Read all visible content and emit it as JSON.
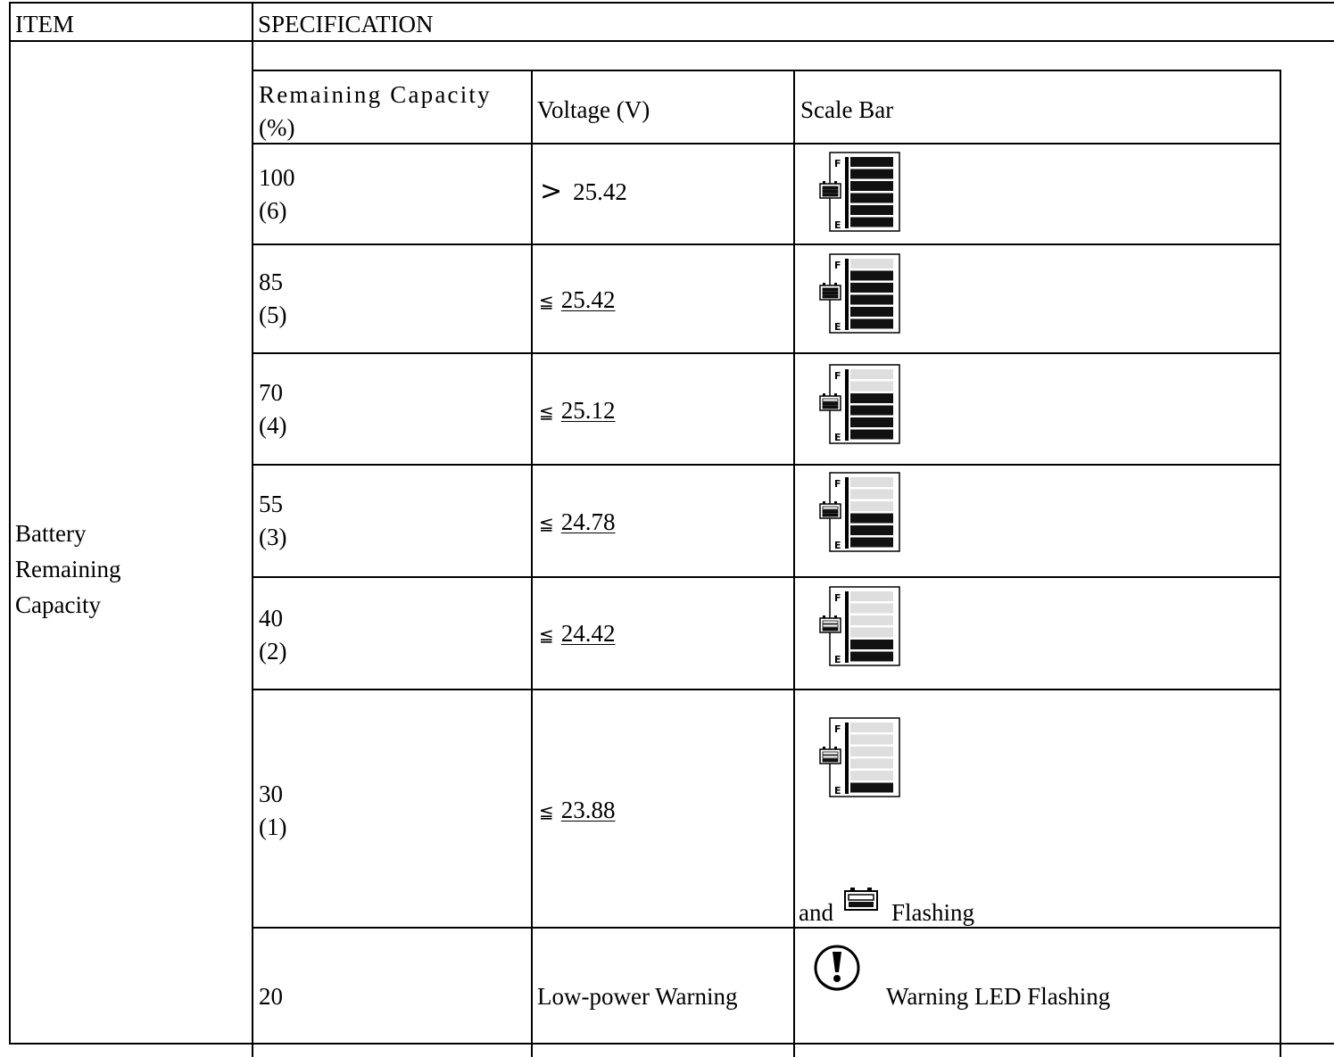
{
  "header": {
    "item": "ITEM",
    "specification": "SPECIFICATION"
  },
  "item_label": {
    "line1": "Battery",
    "line2": "Remaining",
    "line3": "Capacity"
  },
  "columns": {
    "capacity_line1": "Remaining Capacity",
    "capacity_line2": "(%)",
    "voltage": "Voltage (V)",
    "scale": "Scale Bar"
  },
  "rows": [
    {
      "capacity": "100",
      "level_text": "(6)",
      "symbol": ">",
      "voltage": "25.42",
      "filled_bars": 6
    },
    {
      "capacity": "85",
      "level_text": "(5)",
      "symbol": "≦",
      "voltage": "25.42",
      "filled_bars": 5
    },
    {
      "capacity": "70",
      "level_text": "(4)",
      "symbol": "≦",
      "voltage": "25.12",
      "filled_bars": 4
    },
    {
      "capacity": "55",
      "level_text": "(3)",
      "symbol": "≦",
      "voltage": "24.78",
      "filled_bars": 3
    },
    {
      "capacity": "40",
      "level_text": "(2)",
      "symbol": "≦",
      "voltage": "24.42",
      "filled_bars": 2
    },
    {
      "capacity": "30",
      "level_text": "(1)",
      "symbol": "≦",
      "voltage": "23.88",
      "filled_bars": 1
    }
  ],
  "flashing_note": {
    "prefix": "and",
    "suffix": "Flashing"
  },
  "warning_row": {
    "capacity": "20",
    "voltage": "Low-power Warning",
    "note": "Warning LED Flashing"
  },
  "icons": {
    "scale": "battery-scale-bar-icon",
    "battery": "battery-icon",
    "warning": "warning-exclamation-icon"
  },
  "colors": {
    "filled_bar": "#111111",
    "empty_bar": "#dedede"
  },
  "scale_labels": {
    "full": "F",
    "empty": "E"
  }
}
